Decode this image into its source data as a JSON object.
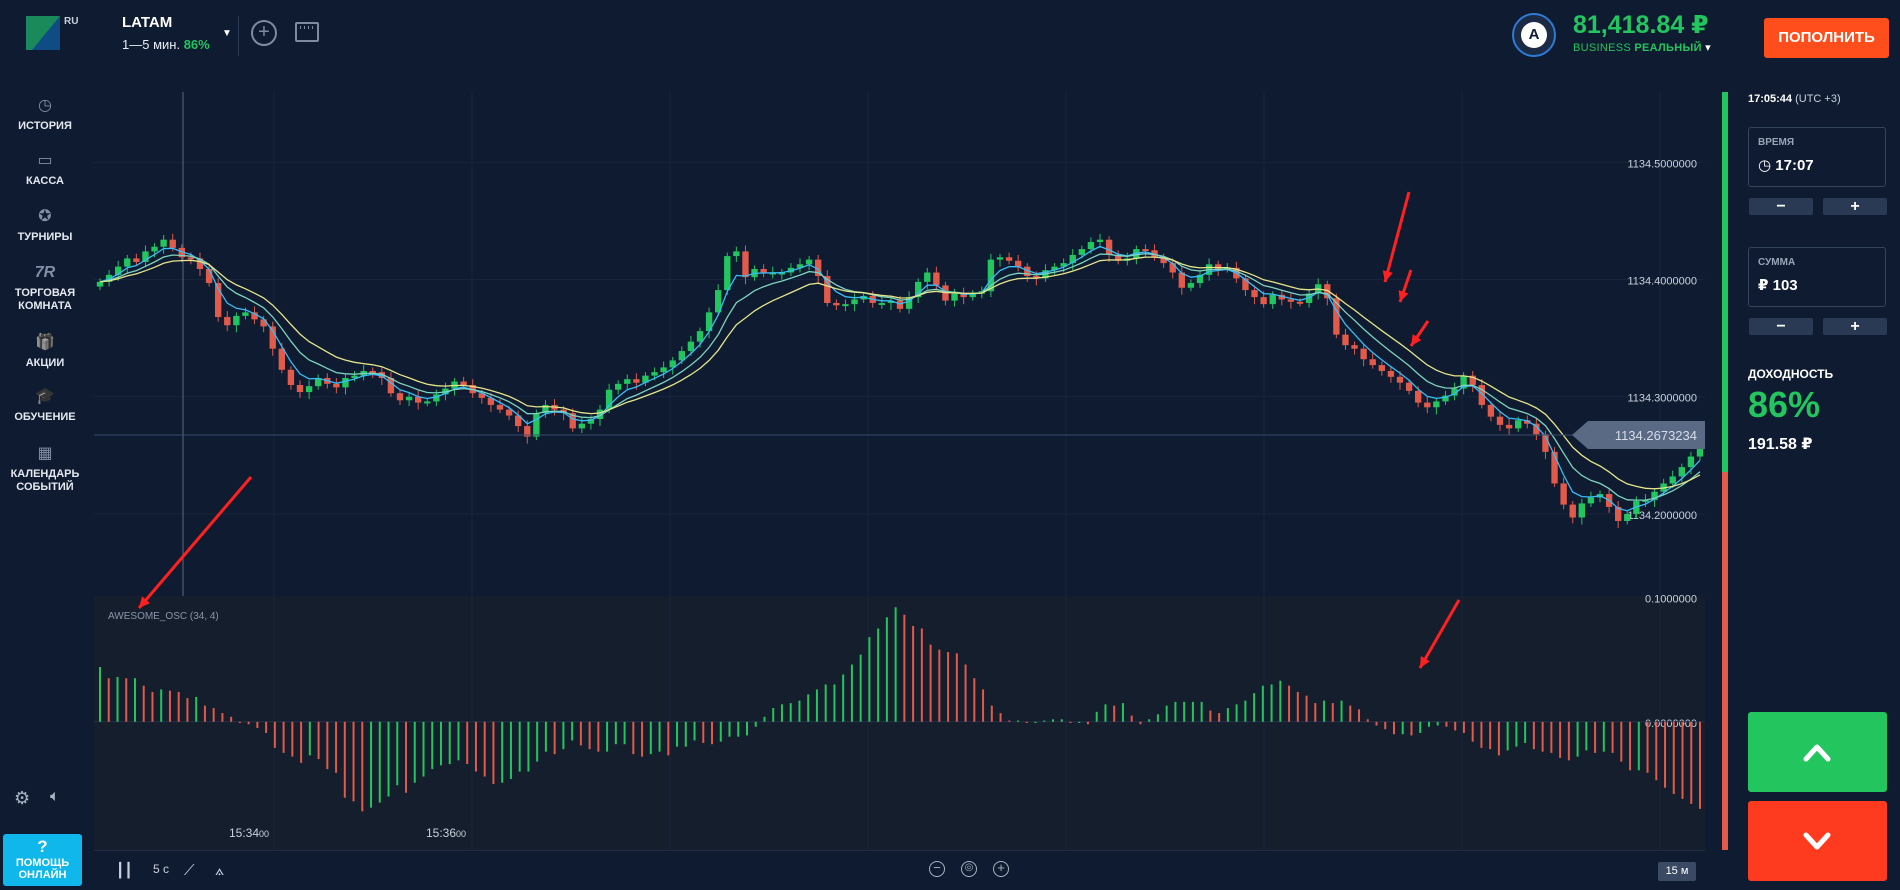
{
  "header": {
    "logo_suffix": "RU",
    "asset_name": "LATAM",
    "asset_duration": "1—5 мин.",
    "asset_payout": "86%",
    "avatar_letter": "A",
    "balance": "81,418.84 ₽",
    "account_type": "BUSINESS",
    "account_mode": "РЕАЛЬНЫЙ",
    "deposit_label": "ПОПОЛНИТЬ"
  },
  "sidebar": {
    "items": [
      {
        "label": "ИСТОРИЯ",
        "icon": "clock-history-icon",
        "glyph": "◷"
      },
      {
        "label": "КАССА",
        "icon": "wallet-icon",
        "glyph": "▭"
      },
      {
        "label": "ТУРНИРЫ",
        "icon": "star-icon",
        "glyph": "✪"
      },
      {
        "label": "ТОРГОВАЯ КОМНАТА",
        "icon": "trading-room-icon",
        "glyph": "7R"
      },
      {
        "label": "АКЦИИ",
        "icon": "gift-icon",
        "glyph": "🎁"
      },
      {
        "label": "ОБУЧЕНИЕ",
        "icon": "graduation-cap-icon",
        "glyph": "🎓"
      },
      {
        "label": "КАЛЕНДАРЬ СОБЫТИЙ",
        "icon": "calendar-icon",
        "glyph": "▦"
      }
    ],
    "help_q": "?",
    "help_label": "ПОМОЩЬ ОНЛАЙН"
  },
  "right_panel": {
    "clock_time": "17:05:44",
    "clock_tz": "(UTC +3)",
    "time_label": "ВРЕМЯ",
    "time_value": "17:07",
    "amount_label": "СУММА",
    "amount_value": "₽ 103",
    "minus": "−",
    "plus": "+",
    "yield_label": "ДОХОДНОСТЬ",
    "yield_pct": "86%",
    "yield_value": "191.58 ₽"
  },
  "toolbar": {
    "interval": "5 с",
    "timeframe": "15 м"
  },
  "chart_data": {
    "type": "candlestick",
    "price_axis": [
      "1134.5000000",
      "1134.4000000",
      "1134.3000000",
      "1134.2000000"
    ],
    "current_price": "1134.2673234",
    "time_labels": [
      {
        "hm": "15:34",
        "s": "00"
      },
      {
        "hm": "15:36",
        "s": "00"
      }
    ],
    "ylim": [
      1134.13,
      1134.56
    ],
    "indicator": {
      "name": "AWESOME_OSC (34, 4)",
      "axis": [
        "0.1000000",
        "0.0000000"
      ],
      "ylim": [
        -0.095,
        0.085
      ]
    },
    "closes": [
      1134.398,
      1134.404,
      1134.411,
      1134.418,
      1134.415,
      1134.424,
      1134.428,
      1134.434,
      1134.427,
      1134.419,
      1134.418,
      1134.409,
      1134.397,
      1134.368,
      1134.361,
      1134.369,
      1134.372,
      1134.366,
      1134.36,
      1134.341,
      1134.323,
      1134.31,
      1134.304,
      1134.309,
      1134.316,
      1134.311,
      1134.308,
      1134.316,
      1134.318,
      1134.322,
      1134.321,
      1134.316,
      1134.303,
      1134.297,
      1134.3,
      1134.295,
      1134.296,
      1134.302,
      1134.307,
      1134.313,
      1134.31,
      1134.303,
      1134.299,
      1134.293,
      1134.289,
      1134.284,
      1134.275,
      1134.266,
      1134.286,
      1134.293,
      1134.289,
      1134.286,
      1134.273,
      1134.277,
      1134.281,
      1134.289,
      1134.306,
      1134.311,
      1134.315,
      1134.312,
      1134.318,
      1134.321,
      1134.325,
      1134.331,
      1134.339,
      1134.347,
      1134.356,
      1134.372,
      1134.391,
      1134.42,
      1134.424,
      1134.402,
      1134.409,
      1134.406,
      1134.406,
      1134.406,
      1134.41,
      1134.413,
      1134.417,
      1134.403,
      1134.38,
      1134.378,
      1134.379,
      1134.383,
      1134.386,
      1134.38,
      1134.38,
      1134.382,
      1134.375,
      1134.385,
      1134.398,
      1134.406,
      1134.395,
      1134.382,
      1134.388,
      1134.385,
      1134.388,
      1134.39,
      1134.417,
      1134.419,
      1134.416,
      1134.411,
      1134.403,
      1134.401,
      1134.408,
      1134.411,
      1134.414,
      1134.421,
      1134.426,
      1134.432,
      1134.434,
      1134.421,
      1134.416,
      1134.418,
      1134.426,
      1134.425,
      1134.419,
      1134.414,
      1134.406,
      1134.393,
      1134.397,
      1134.404,
      1134.413,
      1134.409,
      1134.41,
      1134.401,
      1134.391,
      1134.385,
      1134.379,
      1134.387,
      1134.383,
      1134.381,
      1134.38,
      1134.388,
      1134.396,
      1134.384,
      1134.353,
      1134.344,
      1134.341,
      1134.332,
      1134.327,
      1134.322,
      1134.317,
      1134.312,
      1134.305,
      1134.295,
      1134.291,
      1134.296,
      1134.301,
      1134.307,
      1134.318,
      1134.31,
      1134.293,
      1134.283,
      1134.276,
      1134.273,
      1134.28,
      1134.277,
      1134.268,
      1134.253,
      1134.226,
      1134.208,
      1134.197,
      1134.209,
      1134.214,
      1134.217,
      1134.206,
      1134.194,
      1134.2,
      1134.211,
      1134.212,
      1134.219,
      1134.226,
      1134.232,
      1134.24,
      1134.249,
      1134.258
    ],
    "ao_values": [
      0.044,
      0.035,
      0.036,
      0.035,
      0.035,
      0.029,
      0.024,
      0.026,
      0.025,
      0.024,
      0.019,
      0.02,
      0.013,
      0.011,
      0.007,
      0.004,
      -0.001,
      -0.002,
      -0.005,
      -0.009,
      -0.021,
      -0.025,
      -0.028,
      -0.033,
      -0.027,
      -0.03,
      -0.038,
      -0.041,
      -0.061,
      -0.064,
      -0.072,
      -0.069,
      -0.065,
      -0.06,
      -0.051,
      -0.057,
      -0.049,
      -0.044,
      -0.038,
      -0.035,
      -0.034,
      -0.031,
      -0.034,
      -0.04,
      -0.044,
      -0.05,
      -0.049,
      -0.046,
      -0.04,
      -0.04,
      -0.032,
      -0.024,
      -0.026,
      -0.022,
      -0.015,
      -0.019,
      -0.022,
      -0.024,
      -0.024,
      -0.018,
      -0.018,
      -0.026,
      -0.028,
      -0.026,
      -0.024,
      -0.027,
      -0.02,
      -0.02,
      -0.015,
      -0.017,
      -0.018,
      -0.016,
      -0.012,
      -0.012,
      -0.011,
      -0.004,
      0.004,
      0.011,
      0.014,
      0.015,
      0.017,
      0.022,
      0.026,
      0.03,
      0.03,
      0.038,
      0.046,
      0.054,
      0.068,
      0.075,
      0.084,
      0.092,
      0.086,
      0.077,
      0.075,
      0.062,
      0.058,
      0.056,
      0.055,
      0.046,
      0.035,
      0.026,
      0.013,
      0.007,
      0.001,
      0.001,
      -0.001,
      -0.001,
      0.001,
      0.002,
      0.002,
      -0.001,
      -0.001,
      -0.002,
      0.008,
      0.014,
      0.013,
      0.015,
      0.005,
      -0.002,
      0.002,
      0.006,
      0.013,
      0.016,
      0.016,
      0.016,
      0.016,
      0.009,
      0.007,
      0.011,
      0.014,
      0.017,
      0.023,
      0.029,
      0.03,
      0.033,
      0.029,
      0.024,
      0.021,
      0.015,
      0.017,
      0.015,
      0.017,
      0.013,
      0.01,
      0.002,
      -0.003,
      -0.006,
      -0.01,
      -0.01,
      -0.011,
      -0.009,
      -0.004,
      -0.003,
      -0.004,
      -0.007,
      -0.009,
      -0.016,
      -0.021,
      -0.022,
      -0.027,
      -0.023,
      -0.02,
      -0.017,
      -0.022,
      -0.024,
      -0.025,
      -0.029,
      -0.031,
      -0.028,
      -0.023,
      -0.025,
      -0.024,
      -0.025,
      -0.032,
      -0.039,
      -0.039,
      -0.041,
      -0.047,
      -0.053,
      -0.058,
      -0.062,
      -0.066,
      -0.07
    ]
  }
}
